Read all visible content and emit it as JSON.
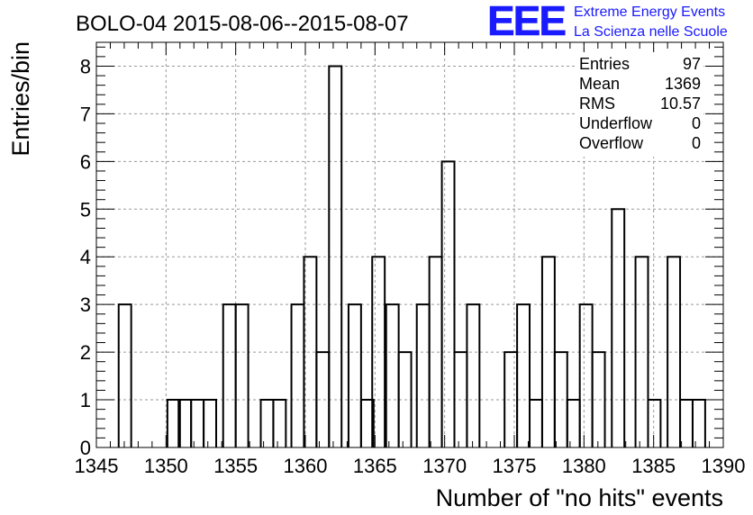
{
  "title": "BOLO-04 2015-08-06--2015-08-07",
  "logo": {
    "mark": "EEE",
    "line1": "Extreme Energy Events",
    "line2": "La Scienza nelle Scuole",
    "color": "#1a1aff"
  },
  "stats": {
    "rows": [
      {
        "label": "Entries",
        "value": "97"
      },
      {
        "label": "Mean",
        "value": "1369"
      },
      {
        "label": "RMS",
        "value": "10.57"
      },
      {
        "label": "Underflow",
        "value": "0"
      },
      {
        "label": "Overflow",
        "value": "0"
      }
    ]
  },
  "chart_data": {
    "type": "bar",
    "xlabel": "Number of \"no hits\" events",
    "ylabel": "Entries/bin",
    "xlim": [
      1345,
      1390
    ],
    "ylim": [
      0,
      8.5
    ],
    "bin_width": 0.9,
    "xticks": [
      1345,
      1350,
      1355,
      1360,
      1365,
      1370,
      1375,
      1380,
      1385,
      1390
    ],
    "yticks": [
      0,
      1,
      2,
      3,
      4,
      5,
      6,
      7,
      8
    ],
    "grid": true,
    "bins": [
      {
        "x": 1346.6,
        "y": 3
      },
      {
        "x": 1350.1,
        "y": 1
      },
      {
        "x": 1350.9,
        "y": 1
      },
      {
        "x": 1351.8,
        "y": 1
      },
      {
        "x": 1352.7,
        "y": 1
      },
      {
        "x": 1354.1,
        "y": 3
      },
      {
        "x": 1355.0,
        "y": 3
      },
      {
        "x": 1356.8,
        "y": 1
      },
      {
        "x": 1357.7,
        "y": 1
      },
      {
        "x": 1359.0,
        "y": 3
      },
      {
        "x": 1359.9,
        "y": 4
      },
      {
        "x": 1360.8,
        "y": 2
      },
      {
        "x": 1361.7,
        "y": 8
      },
      {
        "x": 1363.1,
        "y": 3
      },
      {
        "x": 1364.0,
        "y": 1
      },
      {
        "x": 1364.8,
        "y": 4
      },
      {
        "x": 1365.8,
        "y": 3
      },
      {
        "x": 1366.7,
        "y": 2
      },
      {
        "x": 1368.0,
        "y": 3
      },
      {
        "x": 1368.9,
        "y": 4
      },
      {
        "x": 1369.8,
        "y": 6
      },
      {
        "x": 1370.7,
        "y": 2
      },
      {
        "x": 1371.6,
        "y": 3
      },
      {
        "x": 1374.3,
        "y": 2
      },
      {
        "x": 1375.2,
        "y": 3
      },
      {
        "x": 1376.1,
        "y": 1
      },
      {
        "x": 1377.0,
        "y": 4
      },
      {
        "x": 1377.9,
        "y": 2
      },
      {
        "x": 1378.8,
        "y": 1
      },
      {
        "x": 1379.7,
        "y": 3
      },
      {
        "x": 1380.6,
        "y": 2
      },
      {
        "x": 1382.0,
        "y": 5
      },
      {
        "x": 1383.7,
        "y": 4
      },
      {
        "x": 1384.6,
        "y": 1
      },
      {
        "x": 1386.0,
        "y": 4
      },
      {
        "x": 1386.9,
        "y": 1
      },
      {
        "x": 1387.8,
        "y": 1
      }
    ]
  }
}
